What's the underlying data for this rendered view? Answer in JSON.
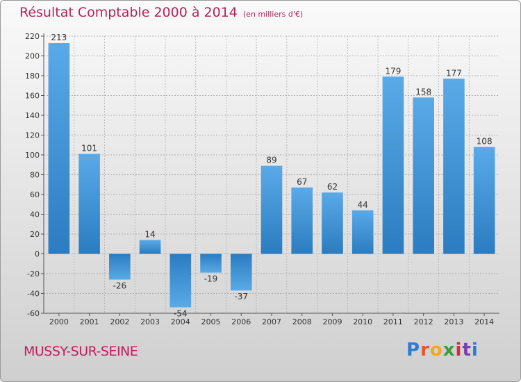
{
  "header": {
    "title": "Résultat Comptable 2000 à 2014",
    "subtitle": "(en milliers d'€)"
  },
  "footer": {
    "town": "MUSSY-SUR-SEINE",
    "logo_letters": [
      "P",
      "r",
      "o",
      "x",
      "i",
      "t",
      "i"
    ],
    "logo_colors": [
      "#2e7bd3",
      "#e8552a",
      "#f4a81c",
      "#3a9e3a",
      "#e2243c",
      "#7a3fb0",
      "#2e7bd3"
    ]
  },
  "colors": {
    "bar_light": "#5aaae8",
    "bar_dark": "#2b7cc0",
    "grid": "#9a9a9a",
    "title": "#b4235a"
  },
  "chart_data": {
    "type": "bar",
    "title": "Résultat Comptable 2000 à 2014",
    "subtitle": "(en milliers d'€)",
    "categories": [
      "2000",
      "2001",
      "2002",
      "2003",
      "2004",
      "2005",
      "2006",
      "2007",
      "2008",
      "2009",
      "2010",
      "2011",
      "2012",
      "2013",
      "2014"
    ],
    "values": [
      213,
      101,
      -26,
      14,
      -54,
      -19,
      -37,
      89,
      67,
      62,
      44,
      179,
      158,
      177,
      108
    ],
    "value_labels": [
      "213",
      "101",
      "-26",
      "14",
      "-54",
      "-19",
      "-37",
      "89",
      "67",
      "62",
      "44",
      "179",
      "158",
      "177",
      "108"
    ],
    "ylim": [
      -60,
      220
    ],
    "yticks": [
      -60,
      -40,
      -20,
      0,
      20,
      40,
      60,
      80,
      100,
      120,
      140,
      160,
      180,
      200,
      220
    ],
    "grid": true,
    "xlabel": "",
    "ylabel": ""
  }
}
